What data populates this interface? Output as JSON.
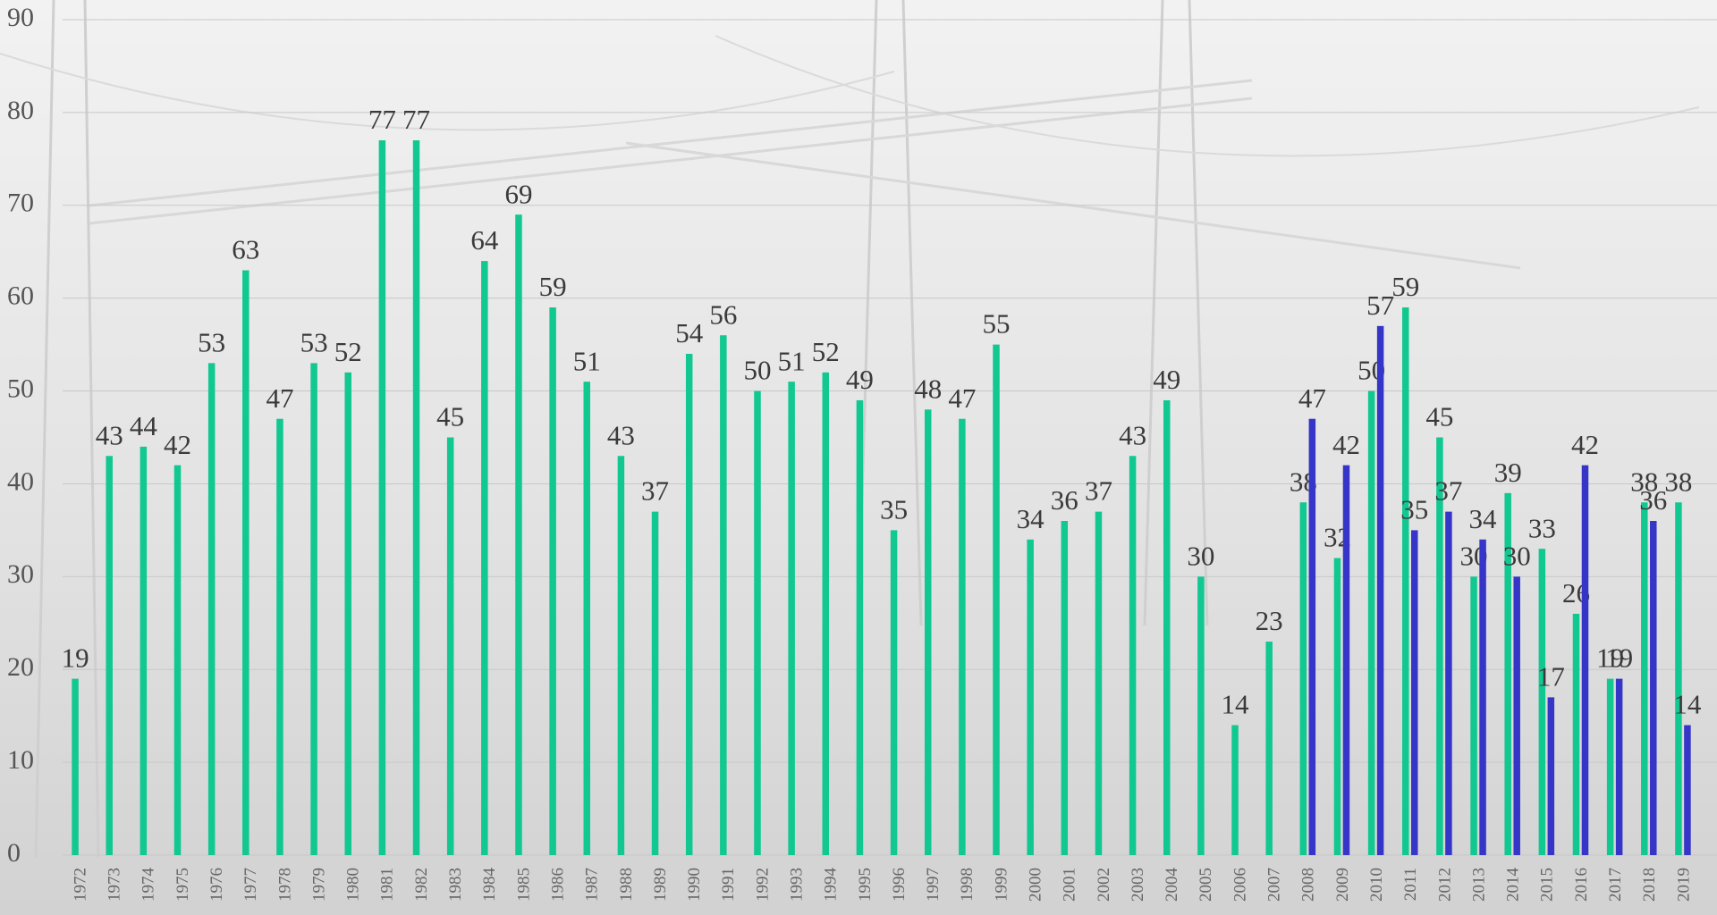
{
  "chart_data": {
    "type": "bar",
    "categories": [
      "1972",
      "1973",
      "1974",
      "1975",
      "1976",
      "1977",
      "1978",
      "1979",
      "1980",
      "1981",
      "1982",
      "1983",
      "1984",
      "1985",
      "1986",
      "1987",
      "1988",
      "1989",
      "1990",
      "1991",
      "1992",
      "1993",
      "1994",
      "1995",
      "1996",
      "1997",
      "1998",
      "1999",
      "2000",
      "2001",
      "2002",
      "2003",
      "2004",
      "2005",
      "2006",
      "2007",
      "2008",
      "2009",
      "2010",
      "2011",
      "2012",
      "2013",
      "2014",
      "2015",
      "2016",
      "2017",
      "2018",
      "2019"
    ],
    "series": [
      {
        "color": "#10c890",
        "values": [
          19,
          43,
          44,
          42,
          53,
          63,
          47,
          53,
          52,
          77,
          77,
          45,
          64,
          69,
          59,
          51,
          43,
          37,
          54,
          56,
          50,
          51,
          52,
          49,
          35,
          48,
          47,
          55,
          34,
          36,
          37,
          43,
          49,
          30,
          14,
          23,
          38,
          32,
          50,
          59,
          45,
          30,
          39,
          33,
          26,
          19,
          38,
          38
        ]
      },
      {
        "color": "#3535c8",
        "values": [
          null,
          null,
          null,
          null,
          null,
          null,
          null,
          null,
          null,
          null,
          null,
          null,
          null,
          null,
          null,
          null,
          null,
          null,
          null,
          null,
          null,
          null,
          null,
          null,
          null,
          null,
          null,
          null,
          null,
          null,
          null,
          null,
          null,
          null,
          null,
          null,
          47,
          42,
          57,
          35,
          37,
          34,
          30,
          17,
          42,
          19,
          36,
          14
        ]
      }
    ],
    "ylim": [
      0,
      90
    ],
    "yticks": [
      0,
      10,
      20,
      30,
      40,
      50,
      60,
      70,
      80,
      90
    ],
    "grid": true
  }
}
